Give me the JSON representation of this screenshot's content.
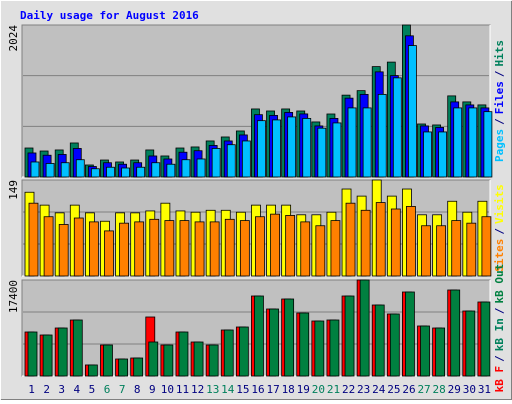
{
  "chart_data": {
    "type": "bar",
    "title": "Daily usage for August 2016",
    "categories": [
      "1",
      "2",
      "3",
      "4",
      "5",
      "6",
      "7",
      "8",
      "9",
      "10",
      "11",
      "12",
      "13",
      "14",
      "15",
      "16",
      "17",
      "18",
      "19",
      "20",
      "21",
      "22",
      "23",
      "24",
      "25",
      "26",
      "27",
      "28",
      "29",
      "30",
      "31"
    ],
    "category_colors": [
      "#000080",
      "#000080",
      "#000080",
      "#000080",
      "#000080",
      "#00805c",
      "#00805c",
      "#000080",
      "#000080",
      "#000080",
      "#000080",
      "#000080",
      "#00805c",
      "#00805c",
      "#000080",
      "#000080",
      "#000080",
      "#000080",
      "#000080",
      "#00805c",
      "#00805c",
      "#000080",
      "#000080",
      "#000080",
      "#000080",
      "#000080",
      "#00805c",
      "#00805c",
      "#000080",
      "#000080",
      "#000080"
    ],
    "legend_separator": "/",
    "panels": [
      {
        "ylim": [
          0,
          2024
        ],
        "yticks": [
          2024
        ],
        "legend": [
          {
            "name": "Pages",
            "color": "#00c0ff"
          },
          {
            "name": "Files",
            "color": "#0000ff"
          },
          {
            "name": "Hits",
            "color": "#00805c"
          }
        ],
        "series": [
          {
            "color": "#00805c",
            "values": [
              386,
              346,
              360,
              453,
              160,
              226,
              200,
              226,
              360,
              280,
              386,
              400,
              480,
              533,
              613,
              906,
              879,
              906,
              879,
              733,
              839,
              1090,
              1150,
              1470,
              1530,
              2024,
              706,
              693,
              1080,
              1000,
              960
            ]
          },
          {
            "color": "#0000ff",
            "values": [
              320,
              290,
              300,
              380,
              140,
              190,
              170,
              190,
              280,
              240,
              330,
              350,
              420,
              480,
              560,
              830,
              820,
              860,
              840,
              680,
              780,
              1050,
              1100,
              1400,
              1350,
              1880,
              680,
              660,
              1000,
              960,
              920
            ]
          },
          {
            "color": "#00c0ff",
            "values": [
              200,
              180,
              190,
              230,
              110,
              130,
              120,
              130,
              190,
              170,
              230,
              240,
              380,
              430,
              480,
              750,
              760,
              800,
              780,
              650,
              720,
              920,
              920,
              1100,
              1320,
              1750,
              600,
              600,
              920,
              920,
              870
            ]
          }
        ]
      },
      {
        "ylim": [
          0,
          149
        ],
        "yticks": [
          149
        ],
        "legend": [
          {
            "name": "Sites",
            "color": "#ff8000"
          },
          {
            "name": "Visits",
            "color": "#ffff00"
          }
        ],
        "series": [
          {
            "color": "#ffff00",
            "values": [
              130,
              110,
              98,
              110,
              98,
              85,
              98,
              98,
              101,
              113,
              101,
              99,
              102,
              102,
              99,
              110,
              110,
              110,
              95,
              95,
              99,
              135,
              124,
              149,
              124,
              135,
              95,
              95,
              116,
              99,
              116
            ]
          },
          {
            "color": "#ff8000",
            "values": [
              113,
              92,
              80,
              90,
              84,
              70,
              82,
              84,
              88,
              86,
              86,
              84,
              84,
              88,
              86,
              92,
              96,
              94,
              84,
              78,
              86,
              113,
              102,
              114,
              104,
              108,
              78,
              78,
              86,
              82,
              92
            ]
          }
        ]
      },
      {
        "ylim": [
          0,
          17400
        ],
        "yticks": [
          17400
        ],
        "legend": [
          {
            "name": "kB F",
            "color": "#ff0000"
          },
          {
            "name": "kB In",
            "color": "#00805c"
          },
          {
            "name": "kB Out",
            "color": "#008040"
          }
        ],
        "series": [
          {
            "color": "#ff0000",
            "values": [
              7975,
              7431,
              8700,
              10150,
              2000,
              5619,
              3081,
              3262,
              10694,
              5619,
              7975,
              6162,
              5619,
              8338,
              8881,
              14500,
              12144,
              13956,
              11419,
              9969,
              10150,
              14500,
              17400,
              12869,
              11238,
              15225,
              9063,
              8700,
              15588,
              11781,
              13413
            ]
          },
          {
            "color": "#008040",
            "values": [
              7975,
              7431,
              8700,
              10150,
              2000,
              5619,
              3081,
              3262,
              6162,
              5619,
              7975,
              6162,
              5619,
              8338,
              8881,
              14500,
              12144,
              13956,
              11419,
              9969,
              10150,
              14500,
              17400,
              12869,
              11238,
              15225,
              9063,
              8700,
              15588,
              11781,
              13413
            ]
          }
        ]
      }
    ]
  }
}
